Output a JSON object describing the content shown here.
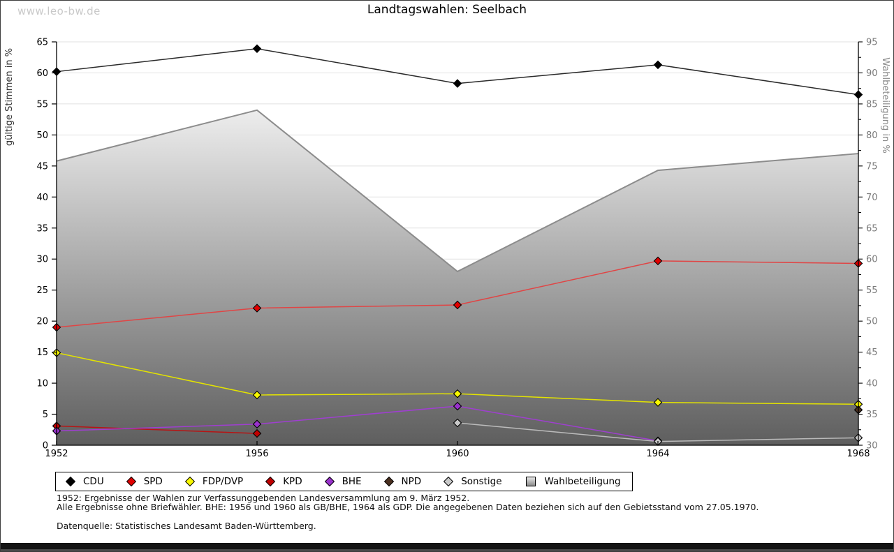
{
  "watermark": "www.leo-bw.de",
  "title": "Landtagswahlen: Seelbach",
  "chart_data": {
    "type": "line",
    "title": "Landtagswahlen: Seelbach",
    "x": [
      1952,
      1956,
      1960,
      1964,
      1968
    ],
    "x_tick_labels": [
      "1952",
      "1956",
      "1960",
      "1964",
      "1968"
    ],
    "axes": {
      "left": {
        "label": "gültige Stimmen in %",
        "min": 0,
        "max": 65,
        "step": 5,
        "tick_color": "#000000"
      },
      "right": {
        "label": "Wahlbeteiligung in %",
        "min": 30,
        "max": 95,
        "step": 5,
        "minor_step": 2.5,
        "tick_color": "#7a7a7a"
      }
    },
    "grid": {
      "on": true,
      "color": "#e1e1e1"
    },
    "area_series": {
      "name": "Wahlbeteiligung",
      "axis": "right",
      "values": [
        75.8,
        84.0,
        58.0,
        74.3,
        77.0
      ],
      "outline_color": "#8c8c8c",
      "fill_top": "#ededed",
      "fill_bottom": "#5e5e5e"
    },
    "series": [
      {
        "name": "CDU",
        "axis": "left",
        "line_color": "#2a2a2a",
        "marker_color": "#000000",
        "values": [
          60.2,
          63.9,
          58.3,
          61.3,
          56.5
        ]
      },
      {
        "name": "SPD",
        "axis": "left",
        "line_color": "#e04545",
        "marker_color": "#e00000",
        "values": [
          19.0,
          22.1,
          22.6,
          29.7,
          29.3
        ]
      },
      {
        "name": "FDP/DVP",
        "axis": "left",
        "line_color": "#e3e300",
        "marker_color": "#f8f800",
        "values": [
          14.9,
          8.1,
          8.3,
          6.9,
          6.6
        ]
      },
      {
        "name": "KPD",
        "axis": "left",
        "line_color": "#b81414",
        "marker_color": "#c00000",
        "values": [
          3.1,
          1.9,
          null,
          null,
          null
        ]
      },
      {
        "name": "BHE",
        "axis": "left",
        "line_color": "#9f3fd0",
        "marker_color": "#9932cc",
        "values": [
          2.3,
          3.4,
          6.3,
          0.7,
          null
        ]
      },
      {
        "name": "NPD",
        "axis": "left",
        "line_color": "#4a3020",
        "marker_color": "#4a3020",
        "values": [
          null,
          null,
          null,
          null,
          5.7
        ]
      },
      {
        "name": "Sonstige",
        "axis": "left",
        "line_color": "#bbbbbb",
        "marker_color": "#c9c9c9",
        "values": [
          null,
          null,
          3.6,
          0.6,
          1.2
        ]
      }
    ],
    "legend_position": "bottom"
  },
  "legend": {
    "items": [
      {
        "label": "CDU",
        "marker": "diamond",
        "color": "#000000"
      },
      {
        "label": "SPD",
        "marker": "diamond",
        "color": "#e00000"
      },
      {
        "label": "FDP/DVP",
        "marker": "diamond",
        "color": "#f8f800"
      },
      {
        "label": "KPD",
        "marker": "diamond",
        "color": "#c00000"
      },
      {
        "label": "BHE",
        "marker": "diamond",
        "color": "#9932cc"
      },
      {
        "label": "NPD",
        "marker": "diamond",
        "color": "#4a3020"
      },
      {
        "label": "Sonstige",
        "marker": "diamond",
        "color": "#c9c9c9"
      },
      {
        "label": "Wahlbeteiligung",
        "marker": "square",
        "color": "#b5b5b5"
      }
    ]
  },
  "footnotes": {
    "line1": "1952: Ergebnisse der Wahlen zur Verfassunggebenden Landesversammlung am 9. März 1952.",
    "line2": "Alle Ergebnisse ohne Briefwähler. BHE: 1956 und 1960 als GB/BHE, 1964 als GDP. Die angegebenen Daten beziehen sich auf den Gebietsstand vom 27.05.1970.",
    "source": "Datenquelle: Statistisches Landesamt Baden-Württemberg."
  }
}
